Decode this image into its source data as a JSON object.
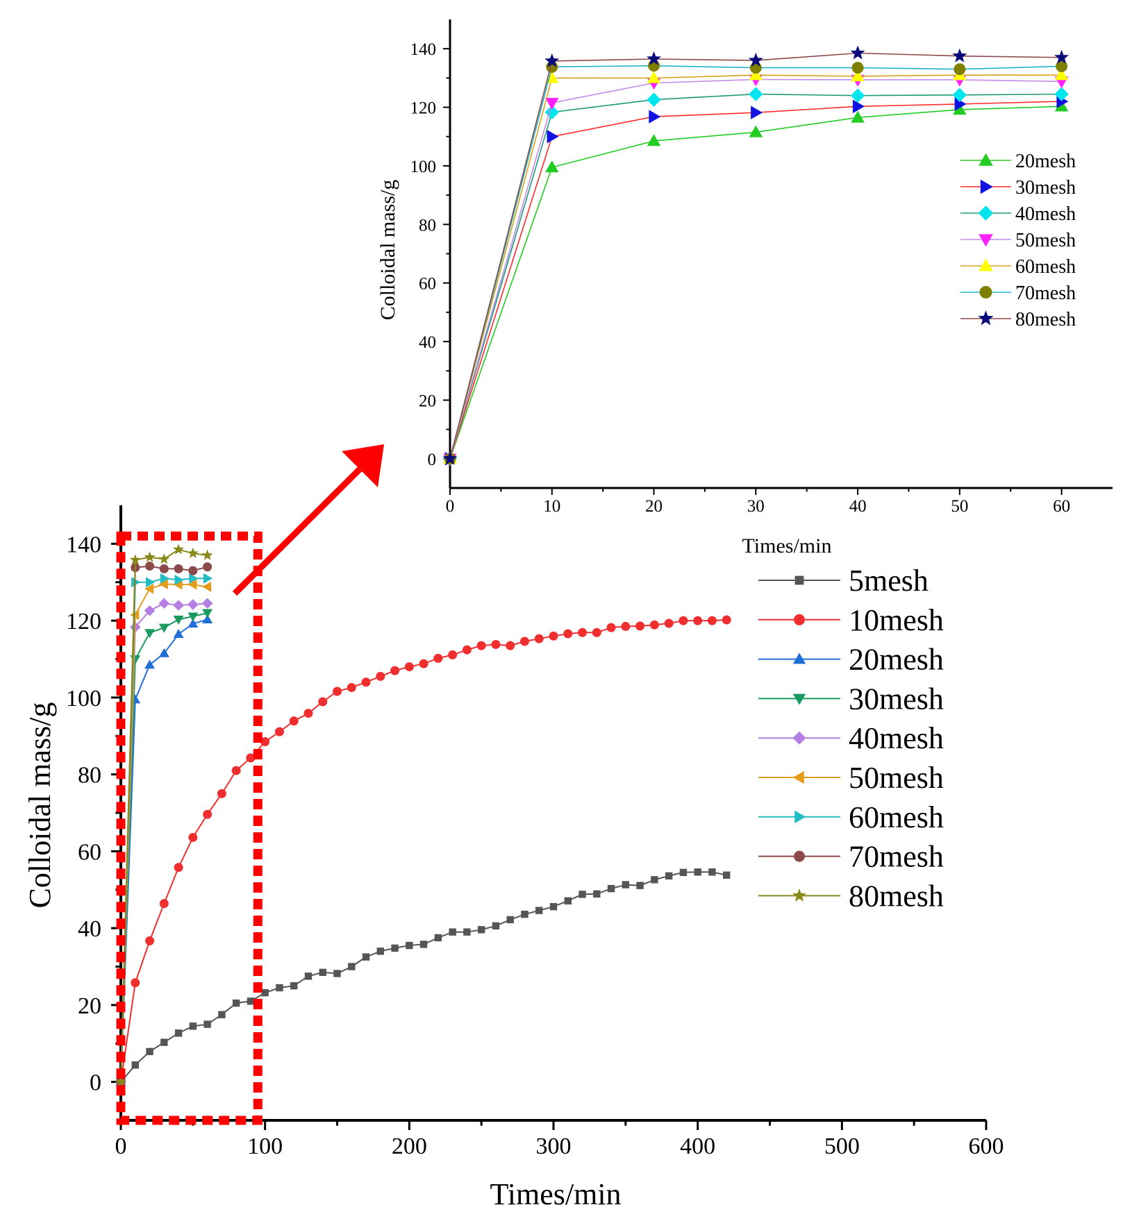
{
  "chart_data": [
    {
      "id": "main",
      "type": "line",
      "title": "",
      "xlabel": "Times/min",
      "ylabel": "Colloidal mass/g",
      "xlim": [
        0,
        600
      ],
      "ylim": [
        -10,
        150
      ],
      "xticks": [
        "0",
        "100",
        "200",
        "300",
        "400",
        "500",
        "600"
      ],
      "yticks": [
        "0",
        "20",
        "40",
        "60",
        "80",
        "100",
        "120",
        "140"
      ],
      "legend_position": "right",
      "series": [
        {
          "name": "5mesh",
          "color": "#555555",
          "marker": "square",
          "x": [
            0,
            10,
            20,
            30,
            40,
            50,
            60,
            70,
            80,
            90,
            100,
            110,
            120,
            130,
            140,
            150,
            160,
            170,
            180,
            190,
            200,
            210,
            220,
            230,
            240,
            250,
            260,
            270,
            280,
            290,
            300,
            310,
            320,
            330,
            340,
            350,
            360,
            370,
            380,
            390,
            400,
            410,
            420
          ],
          "y": [
            0,
            4.4,
            7.9,
            10.3,
            12.7,
            14.5,
            15,
            17.5,
            20.5,
            21,
            23.2,
            24.5,
            25,
            27.5,
            28.5,
            28.2,
            30,
            32.5,
            34,
            34.8,
            35.5,
            35.8,
            37.5,
            39,
            39,
            39.6,
            40.6,
            42.2,
            43.6,
            44.6,
            45.6,
            47.1,
            48.8,
            48.9,
            50.3,
            51.3,
            51.1,
            52.6,
            53.6,
            54.5,
            54.6,
            54.6,
            53.8
          ]
        },
        {
          "name": "10mesh",
          "color": "#ef2f2f",
          "marker": "circle",
          "x": [
            0,
            10,
            20,
            30,
            40,
            50,
            60,
            70,
            80,
            90,
            100,
            110,
            120,
            130,
            140,
            150,
            160,
            170,
            180,
            190,
            200,
            210,
            220,
            230,
            240,
            250,
            260,
            270,
            280,
            290,
            300,
            310,
            320,
            330,
            340,
            350,
            360,
            370,
            380,
            390,
            400,
            410,
            420
          ],
          "y": [
            0,
            25.8,
            36.7,
            46.4,
            55.8,
            63.6,
            69.6,
            75,
            81,
            84.3,
            88.5,
            91.1,
            93.9,
            95.9,
            98.9,
            101.6,
            102.6,
            104,
            105.5,
            107,
            108,
            108.8,
            110.2,
            111.1,
            112.4,
            113.5,
            113.8,
            113.5,
            114.6,
            115.3,
            116,
            116.6,
            116.9,
            116.9,
            118.2,
            118.5,
            118.6,
            118.9,
            119.3,
            120,
            120,
            120,
            120.2
          ]
        },
        {
          "name": "20mesh",
          "color": "#1f6fd6",
          "marker": "triangle-up",
          "x": [
            0,
            10,
            20,
            30,
            40,
            50,
            60
          ],
          "y": [
            0,
            99.5,
            108.5,
            111.5,
            116.5,
            119.2,
            120.3
          ]
        },
        {
          "name": "30mesh",
          "color": "#1a9a5e",
          "marker": "triangle-down",
          "x": [
            0,
            10,
            20,
            30,
            40,
            50,
            60
          ],
          "y": [
            0,
            110,
            116.8,
            118.2,
            120.3,
            121.1,
            122
          ]
        },
        {
          "name": "40mesh",
          "color": "#b57fe3",
          "marker": "diamond",
          "x": [
            0,
            10,
            20,
            30,
            40,
            50,
            60
          ],
          "y": [
            0,
            118.3,
            122.6,
            124.5,
            124,
            124.2,
            124.5
          ]
        },
        {
          "name": "50mesh",
          "color": "#e39d1a",
          "marker": "triangle-left",
          "x": [
            0,
            10,
            20,
            30,
            40,
            50,
            60
          ],
          "y": [
            0,
            121.5,
            128.3,
            129.5,
            129.4,
            129.4,
            128.8
          ]
        },
        {
          "name": "60mesh",
          "color": "#21bcc4",
          "marker": "triangle-right",
          "x": [
            0,
            10,
            20,
            30,
            40,
            50,
            60
          ],
          "y": [
            0,
            130,
            130,
            131,
            130.6,
            131,
            131
          ]
        },
        {
          "name": "70mesh",
          "color": "#8b4a4a",
          "marker": "circle",
          "x": [
            0,
            10,
            20,
            30,
            40,
            50,
            60
          ],
          "y": [
            0,
            133.8,
            134.2,
            133.5,
            133.5,
            133,
            134
          ]
        },
        {
          "name": "80mesh",
          "color": "#8a8a1a",
          "marker": "star",
          "x": [
            0,
            10,
            20,
            30,
            40,
            50,
            60
          ],
          "y": [
            0,
            135.8,
            136.5,
            136,
            138.5,
            137.5,
            137
          ]
        }
      ]
    },
    {
      "id": "inset",
      "type": "line",
      "title": "",
      "xlabel": "Times/min",
      "ylabel": "Colloidal mass/g",
      "xlim": [
        0,
        65
      ],
      "ylim": [
        -10,
        150
      ],
      "xticks": [
        "0",
        "10",
        "20",
        "30",
        "40",
        "50",
        "60"
      ],
      "yticks": [
        "0",
        "20",
        "40",
        "60",
        "80",
        "100",
        "120",
        "140"
      ],
      "legend_position": "right",
      "series": [
        {
          "name": "20mesh",
          "color": "#22cc22",
          "line_color": "#22cc22",
          "marker": "triangle-up",
          "x": [
            0,
            10,
            20,
            30,
            40,
            50,
            60
          ],
          "y": [
            0,
            99.5,
            108.5,
            111.5,
            116.5,
            119.2,
            120.3
          ]
        },
        {
          "name": "30mesh",
          "color": "#1212e0",
          "line_color": "#ff2a2a",
          "marker": "triangle-right",
          "x": [
            0,
            10,
            20,
            30,
            40,
            50,
            60
          ],
          "y": [
            0,
            110,
            116.8,
            118.2,
            120.3,
            121.1,
            122
          ]
        },
        {
          "name": "40mesh",
          "color": "#00e5ee",
          "line_color": "#1a9a7a",
          "marker": "diamond",
          "x": [
            0,
            10,
            20,
            30,
            40,
            50,
            60
          ],
          "y": [
            0,
            118.3,
            122.6,
            124.5,
            124,
            124.2,
            124.5
          ]
        },
        {
          "name": "50mesh",
          "color": "#ff22ff",
          "line_color": "#c28be8",
          "marker": "triangle-down",
          "x": [
            0,
            10,
            20,
            30,
            40,
            50,
            60
          ],
          "y": [
            0,
            121.5,
            128.3,
            129.5,
            129.4,
            129.4,
            128.8
          ]
        },
        {
          "name": "60mesh",
          "color": "#ffff00",
          "line_color": "#d9a21c",
          "marker": "triangle-up",
          "x": [
            0,
            10,
            20,
            30,
            40,
            50,
            60
          ],
          "y": [
            0,
            130,
            130,
            131,
            130.6,
            131,
            131
          ]
        },
        {
          "name": "70mesh",
          "color": "#808000",
          "line_color": "#1fb3c4",
          "marker": "circle",
          "x": [
            0,
            10,
            20,
            30,
            40,
            50,
            60
          ],
          "y": [
            0,
            133.8,
            134.2,
            133.5,
            133.5,
            133,
            134
          ]
        },
        {
          "name": "80mesh",
          "color": "#0a0a7a",
          "line_color": "#8b4a4a",
          "marker": "star",
          "x": [
            0,
            10,
            20,
            30,
            40,
            50,
            60
          ],
          "y": [
            0,
            135.8,
            136.5,
            136,
            138.5,
            137.5,
            137
          ]
        }
      ]
    }
  ],
  "highlight": {
    "x_range": [
      0,
      95
    ],
    "y_range": [
      -10,
      142
    ],
    "color": "#ff0000"
  }
}
